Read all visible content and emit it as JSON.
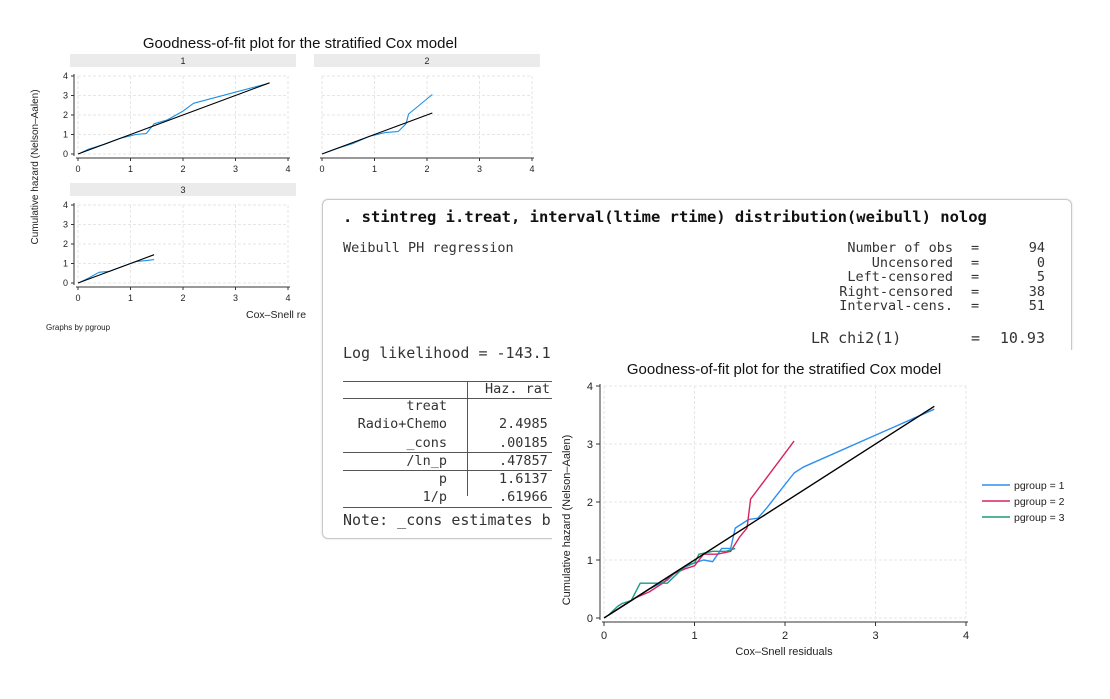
{
  "cover_figure": {
    "title": "Goodness-of-fit plot for the stratified Cox model",
    "ylabel": "Cumulative hazard (Nelson–Aalen)",
    "xlabel": "Cox–Snell re",
    "note": "Graphs by pgroup"
  },
  "stata": {
    "command": ". stintreg i.treat, interval(ltime rtime) distribution(weibull) nolog",
    "model": "Weibull PH regression",
    "stats": [
      {
        "label": "Number of obs",
        "eq": "=",
        "value": "94"
      },
      {
        "label": "Uncensored",
        "eq": "=",
        "value": "0"
      },
      {
        "label": "Left-censored",
        "eq": "=",
        "value": "5"
      },
      {
        "label": "Right-censored",
        "eq": "=",
        "value": "38"
      },
      {
        "label": "Interval-cens.",
        "eq": "=",
        "value": "51"
      }
    ],
    "lr": {
      "label": "LR chi2(1)",
      "eq": "=",
      "value": "10.93"
    },
    "loglik": "Log likelihood = -143.1",
    "table_header": "Haz. rat",
    "rows": [
      {
        "label": "treat",
        "value": ""
      },
      {
        "label": "Radio+Chemo",
        "value": "2.4985"
      },
      {
        "label": "_cons",
        "value": ".00185"
      },
      {
        "label": "/ln_p",
        "value": ".47857"
      },
      {
        "label": "p",
        "value": "1.6137"
      },
      {
        "label": "1/p",
        "value": ".61966"
      }
    ],
    "note": "Note: _cons estimates b"
  },
  "chart_data": [
    {
      "type": "line",
      "panel": "1",
      "title": "1",
      "xlim": [
        0,
        4
      ],
      "ylim": [
        0,
        4
      ],
      "xticks": [
        0,
        1,
        2,
        3,
        4
      ],
      "yticks": [
        0,
        1,
        2,
        3,
        4
      ],
      "grid": true,
      "series": [
        {
          "values": [
            [
              0.05,
              0.05
            ],
            [
              0.2,
              0.25
            ],
            [
              0.5,
              0.5
            ],
            [
              0.8,
              0.8
            ],
            [
              1.1,
              1.0
            ],
            [
              1.3,
              1.05
            ],
            [
              1.45,
              1.55
            ],
            [
              1.7,
              1.75
            ],
            [
              2.0,
              2.2
            ],
            [
              2.2,
              2.6
            ],
            [
              3.6,
              3.6
            ]
          ],
          "color": "#1a91e6"
        },
        {
          "values": [
            [
              0,
              0
            ],
            [
              3.65,
              3.65
            ]
          ],
          "color": "#000000"
        }
      ]
    },
    {
      "type": "line",
      "panel": "2",
      "title": "2",
      "xlim": [
        0,
        4
      ],
      "ylim": [
        0,
        4
      ],
      "xticks": [
        0,
        1,
        2,
        3,
        4
      ],
      "yticks": [],
      "grid": true,
      "series": [
        {
          "values": [
            [
              0.05,
              0.05
            ],
            [
              0.3,
              0.3
            ],
            [
              0.6,
              0.55
            ],
            [
              0.9,
              0.9
            ],
            [
              1.2,
              1.1
            ],
            [
              1.45,
              1.15
            ],
            [
              1.6,
              1.55
            ],
            [
              1.65,
              2.05
            ],
            [
              2.1,
              3.05
            ]
          ],
          "color": "#1a91e6"
        },
        {
          "values": [
            [
              0,
              0
            ],
            [
              2.1,
              2.1
            ]
          ],
          "color": "#000000"
        }
      ]
    },
    {
      "type": "line",
      "panel": "3",
      "title": "3",
      "xlim": [
        0,
        4
      ],
      "ylim": [
        0,
        4
      ],
      "xticks": [
        0,
        1,
        2,
        3,
        4
      ],
      "yticks": [
        0,
        1,
        2,
        3,
        4
      ],
      "grid": true,
      "series": [
        {
          "values": [
            [
              0.05,
              0.05
            ],
            [
              0.2,
              0.25
            ],
            [
              0.4,
              0.55
            ],
            [
              0.6,
              0.6
            ],
            [
              0.9,
              0.9
            ],
            [
              1.1,
              1.1
            ],
            [
              1.3,
              1.15
            ],
            [
              1.45,
              1.2
            ]
          ],
          "color": "#1a91e6"
        },
        {
          "values": [
            [
              0,
              0
            ],
            [
              1.45,
              1.45
            ]
          ],
          "color": "#000000"
        }
      ]
    },
    {
      "type": "line",
      "title": "Goodness-of-fit plot for the stratified Cox model",
      "xlabel": "Cox–Snell residuals",
      "ylabel": "Cumulative hazard (Nelson–Aalen)",
      "xlim": [
        0,
        4
      ],
      "ylim": [
        0,
        4
      ],
      "xticks": [
        0,
        1,
        2,
        3,
        4
      ],
      "yticks": [
        0,
        1,
        2,
        3,
        4
      ],
      "grid": true,
      "legend": "right",
      "series": [
        {
          "name": "pgroup = 1",
          "color": "#2e8ff0",
          "values": [
            [
              0.05,
              0.05
            ],
            [
              0.1,
              0.1
            ],
            [
              0.15,
              0.15
            ],
            [
              0.2,
              0.2
            ],
            [
              0.3,
              0.3
            ],
            [
              0.4,
              0.4
            ],
            [
              0.5,
              0.5
            ],
            [
              0.6,
              0.58
            ],
            [
              0.7,
              0.65
            ],
            [
              0.8,
              0.8
            ],
            [
              0.9,
              0.88
            ],
            [
              1.0,
              0.95
            ],
            [
              1.1,
              1.0
            ],
            [
              1.2,
              0.97
            ],
            [
              1.3,
              1.2
            ],
            [
              1.4,
              1.2
            ],
            [
              1.45,
              1.55
            ],
            [
              1.6,
              1.7
            ],
            [
              1.7,
              1.72
            ],
            [
              1.8,
              1.9
            ],
            [
              1.9,
              2.1
            ],
            [
              2.0,
              2.3
            ],
            [
              2.1,
              2.5
            ],
            [
              2.2,
              2.6
            ],
            [
              3.65,
              3.6
            ]
          ]
        },
        {
          "name": "pgroup = 2",
          "color": "#d7245c",
          "values": [
            [
              0.05,
              0.05
            ],
            [
              0.2,
              0.2
            ],
            [
              0.35,
              0.35
            ],
            [
              0.5,
              0.45
            ],
            [
              0.65,
              0.6
            ],
            [
              0.75,
              0.75
            ],
            [
              0.9,
              0.85
            ],
            [
              1.0,
              0.9
            ],
            [
              1.1,
              1.1
            ],
            [
              1.25,
              1.1
            ],
            [
              1.4,
              1.15
            ],
            [
              1.5,
              1.4
            ],
            [
              1.58,
              1.55
            ],
            [
              1.62,
              2.05
            ],
            [
              2.1,
              3.05
            ]
          ]
        },
        {
          "name": "pgroup = 3",
          "color": "#1a9b7f",
          "values": [
            [
              0.05,
              0.05
            ],
            [
              0.15,
              0.2
            ],
            [
              0.2,
              0.25
            ],
            [
              0.3,
              0.3
            ],
            [
              0.4,
              0.6
            ],
            [
              0.5,
              0.6
            ],
            [
              0.7,
              0.6
            ],
            [
              0.8,
              0.75
            ],
            [
              0.9,
              0.9
            ],
            [
              1.0,
              0.95
            ],
            [
              1.05,
              1.1
            ],
            [
              1.2,
              1.15
            ],
            [
              1.35,
              1.15
            ],
            [
              1.45,
              1.2
            ]
          ]
        },
        {
          "color": "#000000",
          "values": [
            [
              0,
              0
            ],
            [
              3.65,
              3.65
            ]
          ]
        }
      ]
    }
  ]
}
